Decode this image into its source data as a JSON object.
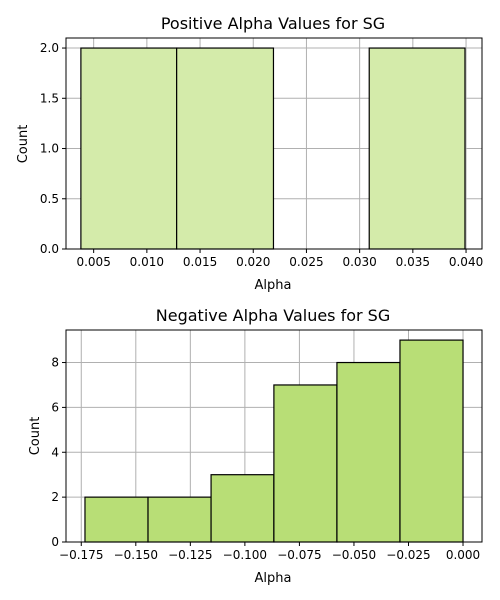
{
  "chart_data": [
    {
      "type": "bar",
      "title": "Positive Alpha Values for SG",
      "xlabel": "Alpha",
      "ylabel": "Count",
      "color": "#d4ebaa",
      "edge_color": "#000000",
      "grid": true,
      "xlim": [
        0.0024,
        0.0415
      ],
      "ylim": [
        0,
        2.1
      ],
      "xticks": [
        0.005,
        0.01,
        0.015,
        0.02,
        0.025,
        0.03,
        0.035,
        0.04
      ],
      "xtick_labels": [
        "0.005",
        "0.010",
        "0.015",
        "0.020",
        "0.025",
        "0.030",
        "0.035",
        "0.040"
      ],
      "yticks": [
        0,
        0.5,
        1,
        1.5,
        2
      ],
      "ytick_labels": [
        "0.0",
        "0.5",
        "1.0",
        "1.5",
        "2.0"
      ],
      "bins": [
        {
          "x0": 0.0038,
          "x1": 0.0128,
          "count": 2
        },
        {
          "x0": 0.0128,
          "x1": 0.0219,
          "count": 2
        },
        {
          "x0": 0.0219,
          "x1": 0.0309,
          "count": 0
        },
        {
          "x0": 0.0309,
          "x1": 0.0399,
          "count": 2
        }
      ]
    },
    {
      "type": "bar",
      "title": "Negative Alpha Values for SG",
      "xlabel": "Alpha",
      "ylabel": "Count",
      "color": "#b8de76",
      "edge_color": "#000000",
      "grid": true,
      "xlim": [
        -0.182,
        0.0087
      ],
      "ylim": [
        0,
        9.45
      ],
      "xticks": [
        -0.175,
        -0.15,
        -0.125,
        -0.1,
        -0.075,
        -0.05,
        -0.025,
        0
      ],
      "xtick_labels": [
        "−0.175",
        "−0.150",
        "−0.125",
        "−0.100",
        "−0.075",
        "−0.050",
        "−0.025",
        "0.000"
      ],
      "yticks": [
        0,
        2,
        4,
        6,
        8
      ],
      "ytick_labels": [
        "0",
        "2",
        "4",
        "6",
        "8"
      ],
      "bins": [
        {
          "x0": -0.1733,
          "x1": -0.1444,
          "count": 2
        },
        {
          "x0": -0.1444,
          "x1": -0.1155,
          "count": 2
        },
        {
          "x0": -0.1155,
          "x1": -0.0867,
          "count": 3
        },
        {
          "x0": -0.0867,
          "x1": -0.0578,
          "count": 7
        },
        {
          "x0": -0.0578,
          "x1": -0.0289,
          "count": 8
        },
        {
          "x0": -0.0289,
          "x1": 0.0,
          "count": 9
        }
      ]
    }
  ]
}
